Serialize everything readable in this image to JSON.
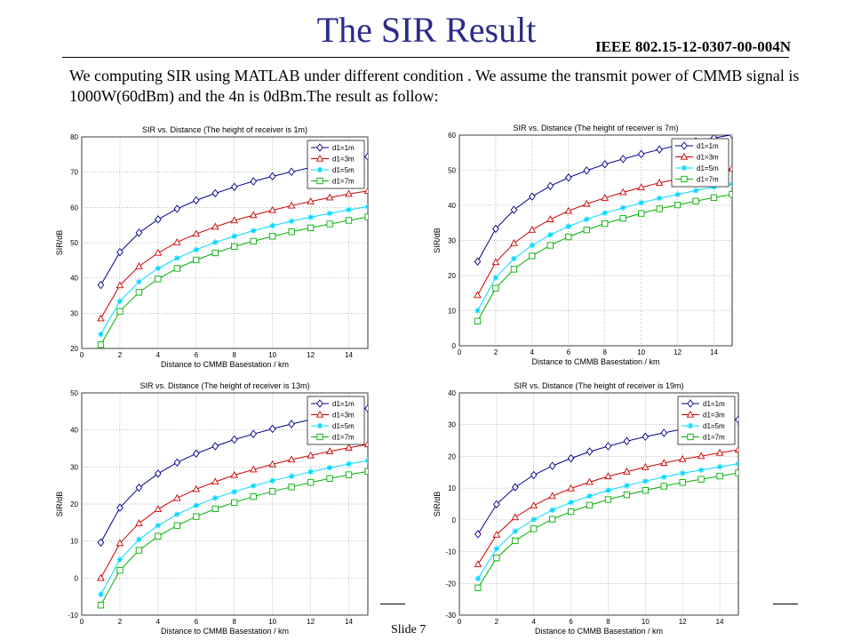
{
  "slide": {
    "title": "The SIR Result",
    "doc_id": "IEEE 802.15-12-0307-00-004N",
    "intro": "We computing SIR using MATLAB under different condition . We assume the transmit power of CMMB signal is 1000W(60dBm) and the 4n is 0dBm.The result as follow:",
    "slide_number": "Slide 7"
  },
  "style": {
    "title_color": "#2b2b8a",
    "series_colors": [
      "#00008b",
      "#cc0000",
      "#00d8ff",
      "#00b000"
    ],
    "series_markers": [
      "diamond",
      "triangle",
      "star",
      "square"
    ]
  },
  "chart_data": [
    {
      "type": "line",
      "title": "SIR vs. Distance (The height of receiver is 1m)",
      "xlabel": "Distance to CMMB Basestation / km",
      "ylabel": "SIR/dB",
      "xlim": [
        0,
        15
      ],
      "ylim": [
        20,
        80
      ],
      "xticks": [
        0,
        2,
        4,
        6,
        8,
        10,
        12,
        14
      ],
      "yticks": [
        20,
        30,
        40,
        50,
        60,
        70,
        80
      ],
      "grid": true,
      "legend_position": "top-right",
      "x": [
        1,
        2,
        3,
        4,
        5,
        6,
        7,
        8,
        9,
        10,
        11,
        12,
        13,
        14,
        15
      ],
      "series": [
        {
          "name": "d1=1m",
          "values": [
            38,
            47.3,
            52.8,
            56.6,
            59.6,
            62,
            64,
            65.8,
            67.4,
            68.8,
            70.1,
            71.3,
            72.4,
            73.4,
            74.4
          ]
        },
        {
          "name": "d1=3m",
          "values": [
            28.5,
            37.9,
            43.3,
            47.1,
            50.1,
            52.5,
            54.5,
            56.3,
            57.8,
            59.2,
            60.5,
            61.7,
            62.8,
            63.8,
            64.7
          ]
        },
        {
          "name": "d1=5m",
          "values": [
            24,
            33.4,
            38.9,
            42.7,
            45.6,
            48,
            50.1,
            51.8,
            53.4,
            54.8,
            56.1,
            57.2,
            58.3,
            59.3,
            60.2
          ]
        },
        {
          "name": "d1=7m",
          "values": [
            21.1,
            30.5,
            35.9,
            39.7,
            42.7,
            45.1,
            47.1,
            48.9,
            50.4,
            51.8,
            53.1,
            54.2,
            55.3,
            56.3,
            57.3
          ]
        }
      ]
    },
    {
      "type": "line",
      "title": "SIR vs. Distance (The height of receiver is 7m)",
      "xlabel": "Distance to CMMB Basestation / km",
      "ylabel": "SIR/dB",
      "xlim": [
        0,
        15
      ],
      "ylim": [
        0,
        60
      ],
      "xticks": [
        0,
        2,
        4,
        6,
        8,
        10,
        12,
        14
      ],
      "yticks": [
        0,
        10,
        20,
        30,
        40,
        50,
        60
      ],
      "grid": true,
      "legend_position": "top-right",
      "x": [
        1,
        2,
        3,
        4,
        5,
        6,
        7,
        8,
        9,
        10,
        11,
        12,
        13,
        14,
        15
      ],
      "series": [
        {
          "name": "d1=1m",
          "values": [
            24,
            33.3,
            38.7,
            42.5,
            45.5,
            47.9,
            49.9,
            51.7,
            53.2,
            54.6,
            55.9,
            57.1,
            58.2,
            59.2,
            60.1
          ]
        },
        {
          "name": "d1=3m",
          "values": [
            14.4,
            23.8,
            29.2,
            33,
            36,
            38.4,
            40.4,
            42.1,
            43.7,
            45.1,
            46.4,
            47.5,
            48.6,
            49.6,
            50.5
          ]
        },
        {
          "name": "d1=5m",
          "values": [
            10,
            19.4,
            24.8,
            28.6,
            31.6,
            34,
            36,
            37.8,
            39.3,
            40.7,
            42,
            43.1,
            44.2,
            45.2,
            46.1
          ]
        },
        {
          "name": "d1=7m",
          "values": [
            7,
            16.4,
            21.8,
            25.6,
            28.6,
            31,
            33,
            34.8,
            36.3,
            37.7,
            39,
            40.1,
            41.2,
            42.2,
            43.1
          ]
        }
      ]
    },
    {
      "type": "line",
      "title": "SIR vs. Distance (The height of receiver is 13m)",
      "xlabel": "Distance to CMMB Basestation / km",
      "ylabel": "SIR/dB",
      "xlim": [
        0,
        15
      ],
      "ylim": [
        -10,
        50
      ],
      "xticks": [
        0,
        2,
        4,
        6,
        8,
        10,
        12,
        14
      ],
      "yticks": [
        -10,
        0,
        10,
        20,
        30,
        40,
        50
      ],
      "grid": true,
      "legend_position": "top-right",
      "x": [
        1,
        2,
        3,
        4,
        5,
        6,
        7,
        8,
        9,
        10,
        11,
        12,
        13,
        14,
        15
      ],
      "series": [
        {
          "name": "d1=1m",
          "values": [
            9.6,
            19,
            24.4,
            28.2,
            31.2,
            33.6,
            35.6,
            37.4,
            38.9,
            40.3,
            41.6,
            42.8,
            43.8,
            44.8,
            45.8
          ]
        },
        {
          "name": "d1=3m",
          "values": [
            0,
            9.4,
            14.8,
            18.6,
            21.6,
            24,
            26,
            27.8,
            29.3,
            30.7,
            32,
            33.1,
            34.2,
            35.2,
            36.1
          ]
        },
        {
          "name": "d1=5m",
          "values": [
            -4.4,
            5,
            10.4,
            14.2,
            17.2,
            19.6,
            21.6,
            23.3,
            24.9,
            26.3,
            27.5,
            28.7,
            29.8,
            30.8,
            31.7
          ]
        },
        {
          "name": "d1=7m",
          "values": [
            -7.3,
            2.1,
            7.5,
            11.3,
            14.2,
            16.6,
            18.7,
            20.4,
            22,
            23.4,
            24.6,
            25.8,
            26.9,
            27.9,
            28.8
          ]
        }
      ]
    },
    {
      "type": "line",
      "title": "SIR vs. Distance (The height of receiver is 19m)",
      "xlabel": "Distance to CMMB Basestation / km",
      "ylabel": "SIR/dB",
      "xlim": [
        0,
        15
      ],
      "ylim": [
        -30,
        40
      ],
      "xticks": [
        0,
        2,
        4,
        6,
        8,
        10,
        12,
        14
      ],
      "yticks": [
        -30,
        -20,
        -10,
        0,
        10,
        20,
        30,
        40
      ],
      "grid": true,
      "legend_position": "top-right",
      "x": [
        1,
        2,
        3,
        4,
        5,
        6,
        7,
        8,
        9,
        10,
        11,
        12,
        13,
        14,
        15
      ],
      "series": [
        {
          "name": "d1=1m",
          "values": [
            -4.5,
            4.9,
            10.3,
            14.1,
            17,
            19.4,
            21.5,
            23.2,
            24.8,
            26.2,
            27.4,
            28.6,
            29.7,
            30.7,
            31.6
          ]
        },
        {
          "name": "d1=3m",
          "values": [
            -14,
            -4.7,
            0.8,
            4.5,
            7.5,
            9.9,
            11.9,
            13.7,
            15.2,
            16.6,
            17.9,
            19.1,
            20.1,
            21.1,
            22.1
          ]
        },
        {
          "name": "d1=5m",
          "values": [
            -18.5,
            -9.1,
            -3.6,
            0.1,
            3.1,
            5.5,
            7.5,
            9.3,
            10.8,
            12.2,
            13.5,
            14.7,
            15.7,
            16.7,
            17.7
          ]
        },
        {
          "name": "d1=7m",
          "values": [
            -21.4,
            -12,
            -6.6,
            -2.8,
            0.2,
            2.6,
            4.6,
            6.4,
            7.9,
            9.3,
            10.6,
            11.8,
            12.8,
            13.8,
            14.8
          ]
        }
      ]
    }
  ]
}
